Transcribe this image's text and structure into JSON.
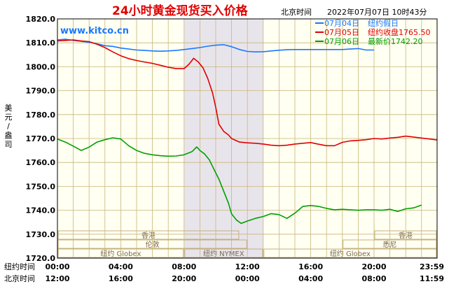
{
  "header": {
    "title": "24小时黄金现货买入价格",
    "tz_label": "北京时间",
    "timestamp": "2022年07月07日 10时43分",
    "watermark": "www.kitco.cn"
  },
  "chart_data": {
    "type": "line",
    "ylabel": "美元/盎司",
    "ylim": [
      1720,
      1820
    ],
    "yticks": [
      "1820.0",
      "1810.0",
      "1800.0",
      "1790.0",
      "1780.0",
      "1770.0",
      "1760.0",
      "1750.0",
      "1740.0",
      "1730.0",
      "1720.0"
    ],
    "x_row1_label": "纽约时间",
    "x_row1_ticks": [
      "00:00",
      "04:00",
      "08:00",
      "12:00",
      "16:00",
      "20:00",
      "23:59"
    ],
    "x_row2_label": "北京时间",
    "x_row2_ticks": [
      "12:00",
      "16:00",
      "20:00",
      "00:00",
      "04:00",
      "08:00",
      "11:59"
    ],
    "shaded_range_hours": [
      8.0,
      13.0
    ],
    "legend": [
      {
        "date": "07月04日",
        "text": "纽约假日",
        "color": "#1a78ff"
      },
      {
        "date": "07月05日",
        "text": "纽约收盘1765.50",
        "color": "#e00000"
      },
      {
        "date": "07月06日",
        "text": "最新价1742.20",
        "color": "#00a000"
      }
    ],
    "market_sessions": [
      {
        "name": "香港",
        "start": 0.0,
        "end": 11.5,
        "row": 0
      },
      {
        "name": "香港",
        "start": 20.0,
        "end": 23.98,
        "row": 0
      },
      {
        "name": "伦敦",
        "start": 0.0,
        "end": 12.0,
        "row": 1
      },
      {
        "name": "悉尼",
        "start": 18.0,
        "end": 23.98,
        "row": 1
      },
      {
        "name": "纽约 Globex",
        "start": 0.0,
        "end": 8.0,
        "row": 2
      },
      {
        "name": "纽约 NYMEX",
        "start": 8.0,
        "end": 13.0,
        "row": 2
      },
      {
        "name": "纽约 Globex",
        "start": 13.0,
        "end": 23.98,
        "row": 2
      }
    ],
    "series": [
      {
        "name": "07月04日",
        "color": "#1a78ff",
        "points": [
          [
            0,
            1811.2
          ],
          [
            0.5,
            1811.5
          ],
          [
            1,
            1811.0
          ],
          [
            1.5,
            1810.6
          ],
          [
            2,
            1810.2
          ],
          [
            2.5,
            1809.6
          ],
          [
            3,
            1808.8
          ],
          [
            3.5,
            1808.5
          ],
          [
            4,
            1807.8
          ],
          [
            4.5,
            1807.4
          ],
          [
            5,
            1807.0
          ],
          [
            5.5,
            1806.8
          ],
          [
            6,
            1806.6
          ],
          [
            6.5,
            1806.5
          ],
          [
            7,
            1806.6
          ],
          [
            7.5,
            1806.8
          ],
          [
            8,
            1807.2
          ],
          [
            8.5,
            1807.6
          ],
          [
            9,
            1808.0
          ],
          [
            9.5,
            1808.6
          ],
          [
            10,
            1809.0
          ],
          [
            10.5,
            1809.2
          ],
          [
            11,
            1808.4
          ],
          [
            11.5,
            1807.2
          ],
          [
            12,
            1806.4
          ],
          [
            12.5,
            1806.2
          ],
          [
            13,
            1806.3
          ],
          [
            13.5,
            1806.6
          ],
          [
            14,
            1806.9
          ],
          [
            14.5,
            1807.1
          ],
          [
            15,
            1807.2
          ],
          [
            16,
            1807.2
          ],
          [
            17,
            1807.2
          ],
          [
            18,
            1807.2
          ],
          [
            18.5,
            1807.4
          ],
          [
            19,
            1807.6
          ],
          [
            19.5,
            1807.0
          ],
          [
            20,
            1807.0
          ]
        ]
      },
      {
        "name": "07月05日",
        "color": "#e00000",
        "points": [
          [
            0,
            1810.8
          ],
          [
            0.5,
            1811.0
          ],
          [
            1,
            1811.2
          ],
          [
            1.5,
            1810.8
          ],
          [
            2,
            1810.5
          ],
          [
            2.5,
            1809.4
          ],
          [
            3,
            1808.0
          ],
          [
            3.5,
            1806.2
          ],
          [
            4,
            1804.6
          ],
          [
            4.5,
            1803.4
          ],
          [
            5,
            1802.6
          ],
          [
            5.5,
            1802.0
          ],
          [
            6,
            1801.4
          ],
          [
            6.5,
            1800.6
          ],
          [
            7,
            1799.8
          ],
          [
            7.5,
            1799.2
          ],
          [
            8,
            1799.2
          ],
          [
            8.3,
            1801.0
          ],
          [
            8.6,
            1803.5
          ],
          [
            8.9,
            1802.0
          ],
          [
            9.2,
            1799.5
          ],
          [
            9.5,
            1795.0
          ],
          [
            9.8,
            1789.0
          ],
          [
            10.0,
            1783.0
          ],
          [
            10.2,
            1776.0
          ],
          [
            10.5,
            1773.0
          ],
          [
            10.8,
            1771.5
          ],
          [
            11,
            1770.0
          ],
          [
            11.5,
            1768.5
          ],
          [
            12,
            1768.2
          ],
          [
            12.5,
            1768.0
          ],
          [
            13,
            1767.7
          ],
          [
            13.5,
            1767.2
          ],
          [
            14,
            1767.0
          ],
          [
            14.5,
            1767.2
          ],
          [
            15,
            1767.7
          ],
          [
            15.5,
            1768.0
          ],
          [
            16,
            1768.3
          ],
          [
            16.5,
            1767.6
          ],
          [
            17,
            1767.0
          ],
          [
            17.5,
            1767.0
          ],
          [
            18,
            1768.4
          ],
          [
            18.5,
            1769.0
          ],
          [
            19,
            1769.2
          ],
          [
            19.5,
            1769.5
          ],
          [
            20,
            1770.0
          ],
          [
            20.5,
            1769.8
          ],
          [
            21,
            1770.2
          ],
          [
            21.5,
            1770.5
          ],
          [
            22,
            1771.0
          ],
          [
            22.5,
            1770.6
          ],
          [
            23,
            1770.2
          ],
          [
            23.5,
            1769.8
          ],
          [
            23.98,
            1769.4
          ]
        ]
      },
      {
        "name": "07月06日",
        "color": "#00a000",
        "points": [
          [
            0,
            1769.8
          ],
          [
            0.5,
            1768.5
          ],
          [
            1,
            1766.8
          ],
          [
            1.5,
            1765.0
          ],
          [
            2,
            1766.4
          ],
          [
            2.5,
            1768.5
          ],
          [
            3,
            1769.5
          ],
          [
            3.5,
            1770.3
          ],
          [
            4,
            1769.8
          ],
          [
            4.5,
            1767.0
          ],
          [
            5,
            1765.0
          ],
          [
            5.5,
            1763.8
          ],
          [
            6,
            1763.2
          ],
          [
            6.5,
            1762.8
          ],
          [
            7,
            1762.6
          ],
          [
            7.5,
            1762.7
          ],
          [
            8,
            1763.2
          ],
          [
            8.5,
            1764.5
          ],
          [
            8.8,
            1766.5
          ],
          [
            9.0,
            1765.0
          ],
          [
            9.3,
            1763.5
          ],
          [
            9.6,
            1761.0
          ],
          [
            9.9,
            1757.0
          ],
          [
            10.2,
            1753.0
          ],
          [
            10.5,
            1748.0
          ],
          [
            10.8,
            1743.0
          ],
          [
            11.0,
            1738.5
          ],
          [
            11.3,
            1736.0
          ],
          [
            11.6,
            1734.5
          ],
          [
            12,
            1735.5
          ],
          [
            12.5,
            1736.6
          ],
          [
            13,
            1737.4
          ],
          [
            13.5,
            1738.6
          ],
          [
            14,
            1738.2
          ],
          [
            14.5,
            1736.6
          ],
          [
            15,
            1738.8
          ],
          [
            15.5,
            1741.6
          ],
          [
            16,
            1742.0
          ],
          [
            16.5,
            1741.6
          ],
          [
            17,
            1740.8
          ],
          [
            17.5,
            1740.2
          ],
          [
            18,
            1740.4
          ],
          [
            18.5,
            1740.2
          ],
          [
            19,
            1740.0
          ],
          [
            19.5,
            1740.2
          ],
          [
            20,
            1740.2
          ],
          [
            20.5,
            1740.0
          ],
          [
            21,
            1740.4
          ],
          [
            21.5,
            1739.5
          ],
          [
            22,
            1740.6
          ],
          [
            22.5,
            1741.0
          ],
          [
            23,
            1742.2
          ]
        ]
      }
    ]
  }
}
